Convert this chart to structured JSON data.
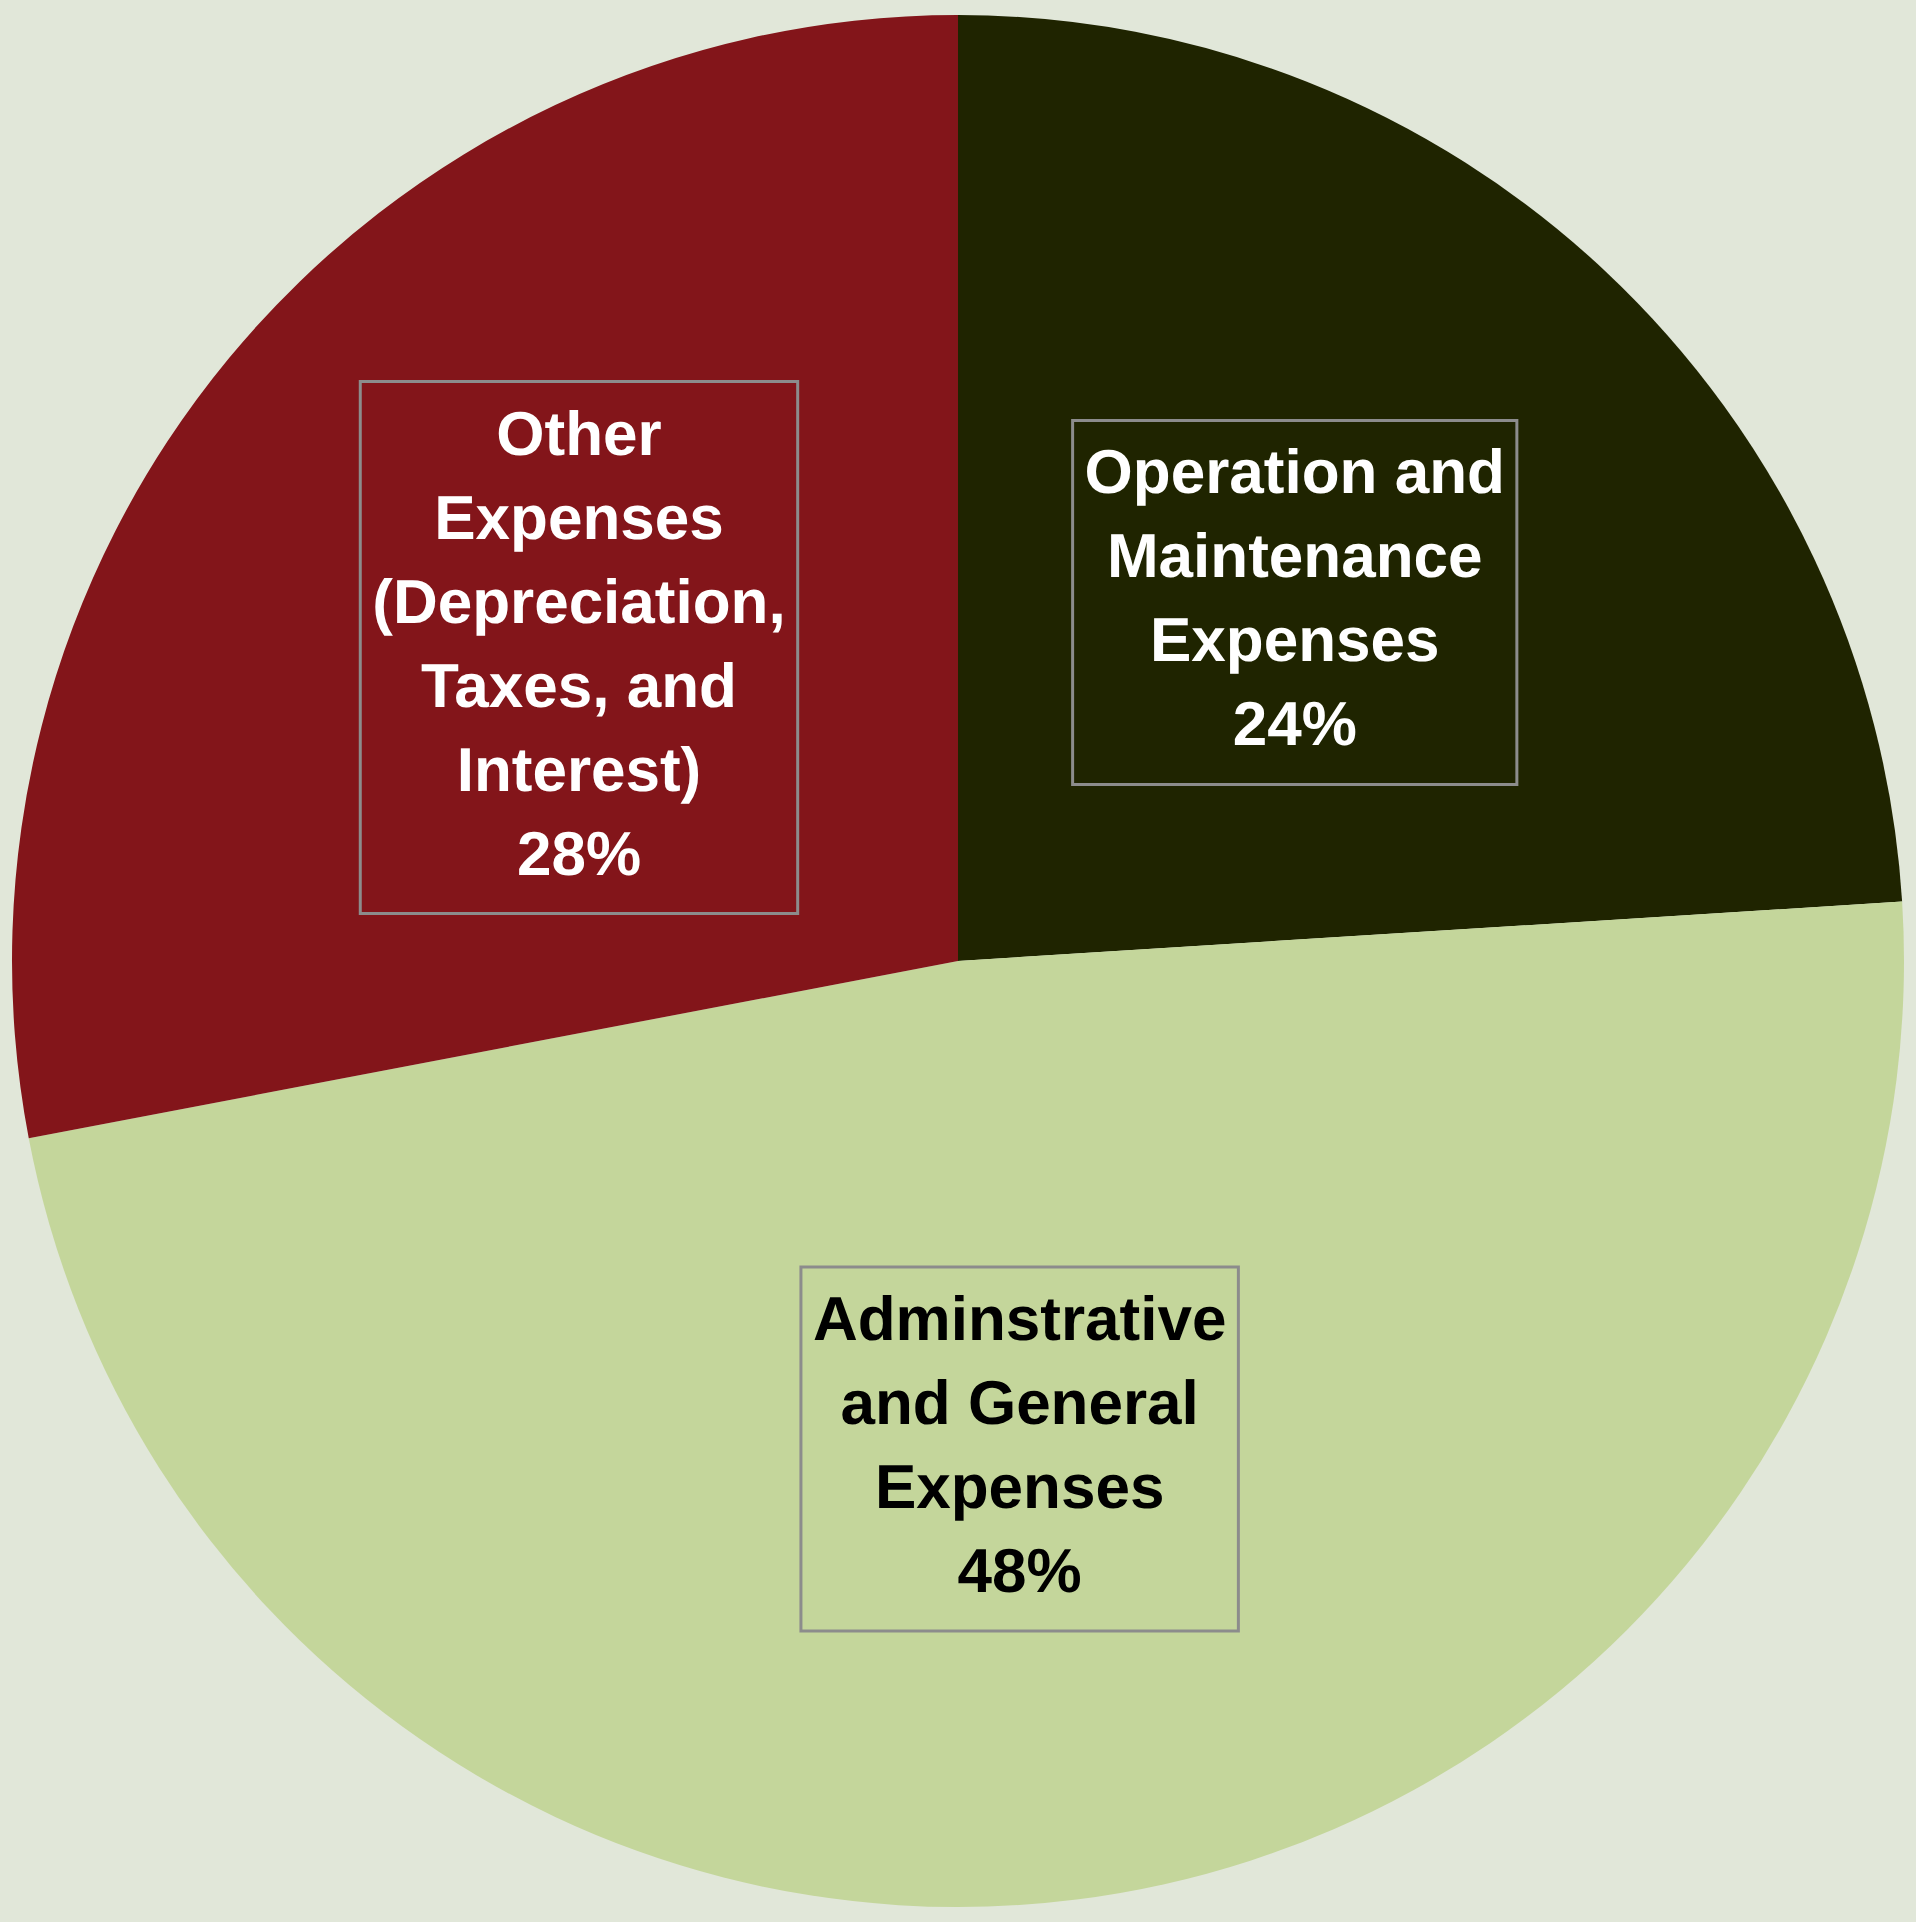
{
  "chart_data": {
    "type": "pie",
    "categories": [
      "Operation and Maintenance Expenses",
      "Adminstrative and General Expenses",
      "Other Expenses (Depreciation, Taxes, and Interest)"
    ],
    "values": [
      24,
      48,
      28
    ],
    "colors": [
      "#1f2400",
      "#c4d69b",
      "#83151a"
    ],
    "value_labels": [
      "24%",
      "48%",
      "28%"
    ],
    "legend": false
  }
}
